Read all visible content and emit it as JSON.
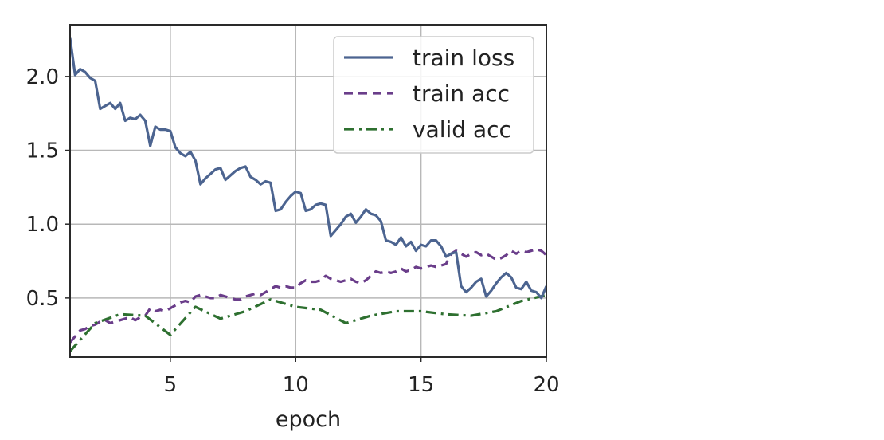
{
  "chart_data": {
    "type": "line",
    "title": "",
    "xlabel": "epoch",
    "ylabel": "",
    "xlim": [
      1,
      20
    ],
    "ylim": [
      0.1,
      2.35
    ],
    "xticks": [
      "5",
      "10",
      "15",
      "20"
    ],
    "yticks": [
      "0.5",
      "1.0",
      "1.5",
      "2.0"
    ],
    "grid": true,
    "legend_position": "upper-right",
    "series": [
      {
        "name": "train loss",
        "style": "solid",
        "color": "#4c6490",
        "x": [
          1.0,
          1.2,
          1.4,
          1.6,
          1.8,
          2.0,
          2.2,
          2.4,
          2.6,
          2.8,
          3.0,
          3.2,
          3.4,
          3.6,
          3.8,
          4.0,
          4.2,
          4.4,
          4.6,
          4.8,
          5.0,
          5.2,
          5.4,
          5.6,
          5.8,
          6.0,
          6.2,
          6.4,
          6.6,
          6.8,
          7.0,
          7.2,
          7.4,
          7.6,
          7.8,
          8.0,
          8.2,
          8.4,
          8.6,
          8.8,
          9.0,
          9.2,
          9.4,
          9.6,
          9.8,
          10.0,
          10.2,
          10.4,
          10.6,
          10.8,
          11.0,
          11.2,
          11.4,
          11.6,
          11.8,
          12.0,
          12.2,
          12.4,
          12.6,
          12.8,
          13.0,
          13.2,
          13.4,
          13.6,
          13.8,
          14.0,
          14.2,
          14.4,
          14.6,
          14.8,
          15.0,
          15.2,
          15.4,
          15.6,
          15.8,
          16.0,
          16.2,
          16.4,
          16.6,
          16.8,
          17.0,
          17.2,
          17.4,
          17.6,
          17.8,
          18.0,
          18.2,
          18.4,
          18.6,
          18.8,
          19.0,
          19.2,
          19.4,
          19.6,
          19.8,
          20.0
        ],
        "values": [
          2.26,
          2.01,
          2.05,
          2.03,
          1.99,
          1.97,
          1.78,
          1.8,
          1.82,
          1.78,
          1.82,
          1.7,
          1.72,
          1.71,
          1.74,
          1.7,
          1.53,
          1.66,
          1.64,
          1.64,
          1.63,
          1.52,
          1.48,
          1.46,
          1.49,
          1.43,
          1.27,
          1.31,
          1.34,
          1.37,
          1.38,
          1.3,
          1.33,
          1.36,
          1.38,
          1.39,
          1.32,
          1.3,
          1.27,
          1.29,
          1.28,
          1.09,
          1.1,
          1.15,
          1.19,
          1.22,
          1.21,
          1.09,
          1.1,
          1.13,
          1.14,
          1.13,
          0.92,
          0.96,
          1.0,
          1.05,
          1.07,
          1.01,
          1.05,
          1.1,
          1.07,
          1.06,
          1.02,
          0.89,
          0.88,
          0.86,
          0.91,
          0.85,
          0.88,
          0.82,
          0.86,
          0.85,
          0.89,
          0.89,
          0.85,
          0.78,
          0.8,
          0.81,
          0.58,
          0.54,
          0.57,
          0.61,
          0.63,
          0.51,
          0.55,
          0.6,
          0.64,
          0.67,
          0.64,
          0.57,
          0.56,
          0.61,
          0.55,
          0.54,
          0.5,
          0.58
        ]
      },
      {
        "name": "train acc",
        "style": "dashed",
        "color": "#6a3d8a",
        "x": [
          1.0,
          1.2,
          1.4,
          1.6,
          1.8,
          2.0,
          2.2,
          2.4,
          2.6,
          2.8,
          3.0,
          3.2,
          3.4,
          3.6,
          3.8,
          4.0,
          4.2,
          4.4,
          4.6,
          4.8,
          5.0,
          5.2,
          5.4,
          5.6,
          5.8,
          6.0,
          6.2,
          6.4,
          6.6,
          6.8,
          7.0,
          7.2,
          7.4,
          7.6,
          7.8,
          8.0,
          8.2,
          8.4,
          8.6,
          8.8,
          9.0,
          9.2,
          9.4,
          9.6,
          9.8,
          10.0,
          10.2,
          10.4,
          10.6,
          10.8,
          11.0,
          11.2,
          11.4,
          11.6,
          11.8,
          12.0,
          12.2,
          12.4,
          12.6,
          12.8,
          13.0,
          13.2,
          13.4,
          13.6,
          13.8,
          14.0,
          14.2,
          14.4,
          14.6,
          14.8,
          15.0,
          15.2,
          15.4,
          15.6,
          15.8,
          16.0,
          16.2,
          16.4,
          16.6,
          16.8,
          17.0,
          17.2,
          17.4,
          17.6,
          17.8,
          18.0,
          18.2,
          18.4,
          18.6,
          18.8,
          19.0,
          19.2,
          19.4,
          19.6,
          19.8,
          20.0
        ],
        "values": [
          0.2,
          0.24,
          0.28,
          0.29,
          0.31,
          0.32,
          0.34,
          0.35,
          0.33,
          0.34,
          0.35,
          0.36,
          0.37,
          0.35,
          0.37,
          0.38,
          0.43,
          0.41,
          0.42,
          0.41,
          0.43,
          0.45,
          0.47,
          0.48,
          0.47,
          0.51,
          0.52,
          0.51,
          0.5,
          0.5,
          0.52,
          0.51,
          0.5,
          0.49,
          0.49,
          0.51,
          0.52,
          0.53,
          0.52,
          0.54,
          0.56,
          0.58,
          0.57,
          0.58,
          0.57,
          0.57,
          0.6,
          0.62,
          0.61,
          0.61,
          0.62,
          0.65,
          0.63,
          0.62,
          0.61,
          0.62,
          0.63,
          0.61,
          0.6,
          0.62,
          0.65,
          0.68,
          0.67,
          0.68,
          0.67,
          0.68,
          0.7,
          0.68,
          0.69,
          0.71,
          0.7,
          0.71,
          0.72,
          0.71,
          0.72,
          0.73,
          0.8,
          0.82,
          0.8,
          0.78,
          0.8,
          0.81,
          0.79,
          0.8,
          0.78,
          0.76,
          0.77,
          0.79,
          0.82,
          0.8,
          0.82,
          0.81,
          0.82,
          0.83,
          0.82,
          0.79
        ]
      },
      {
        "name": "valid acc",
        "style": "dashdot",
        "color": "#2e7030",
        "x": [
          1,
          2,
          3,
          4,
          5,
          6,
          7,
          8,
          9,
          10,
          11,
          12,
          13,
          14,
          15,
          16,
          17,
          18,
          19,
          20
        ],
        "values": [
          0.14,
          0.33,
          0.39,
          0.38,
          0.25,
          0.44,
          0.36,
          0.41,
          0.49,
          0.44,
          0.42,
          0.33,
          0.38,
          0.41,
          0.41,
          0.39,
          0.38,
          0.41,
          0.48,
          0.52
        ]
      }
    ]
  }
}
